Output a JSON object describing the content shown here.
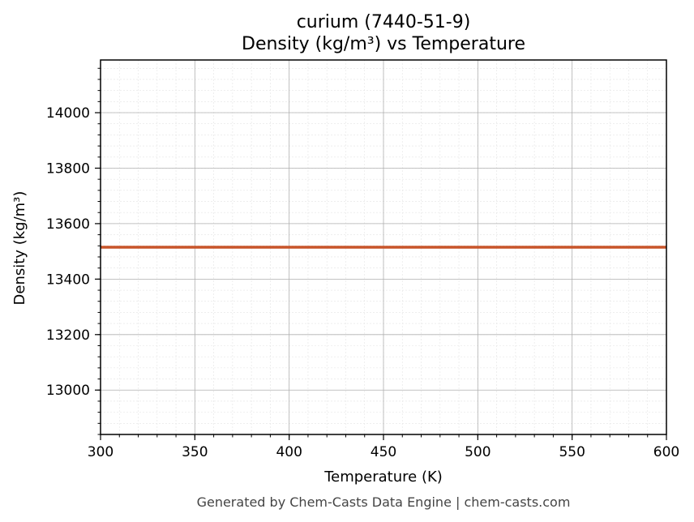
{
  "chart_data": {
    "type": "line",
    "title": "curium (7440-51-9)",
    "subtitle": "Density (kg/m³) vs Temperature",
    "xlabel": "Temperature (K)",
    "ylabel": "Density (kg/m³)",
    "xlim": [
      300,
      600
    ],
    "ylim": [
      12840,
      14190
    ],
    "x_ticks": [
      300,
      350,
      400,
      450,
      500,
      550,
      600
    ],
    "y_ticks": [
      13000,
      13200,
      13400,
      13600,
      13800,
      14000
    ],
    "grid": true,
    "series": [
      {
        "x": [
          300,
          600
        ],
        "y": [
          13515,
          13515
        ],
        "color": "#c8552a"
      }
    ]
  },
  "footer": "Generated by Chem-Casts Data Engine | chem-casts.com"
}
